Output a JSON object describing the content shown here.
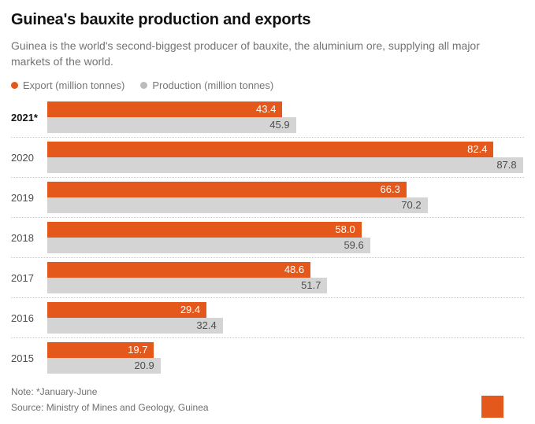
{
  "header": {
    "title": "Guinea's bauxite production and exports",
    "subtitle": "Guinea is the world's second-biggest producer of bauxite, the aluminium ore, supplying all major markets of the world."
  },
  "legend": [
    {
      "label": "Export (million tonnes)",
      "color": "#e5581b"
    },
    {
      "label": "Production (million tonnes)",
      "color": "#bcbcbc"
    }
  ],
  "chart_data": {
    "type": "bar",
    "orientation": "horizontal",
    "title": "Guinea's bauxite production and exports",
    "categories": [
      "2021*",
      "2020",
      "2019",
      "2018",
      "2017",
      "2016",
      "2015"
    ],
    "series": [
      {
        "name": "Export (million tonnes)",
        "color": "#e5581b",
        "values": [
          43.4,
          82.4,
          66.3,
          58.0,
          48.6,
          29.4,
          19.7
        ]
      },
      {
        "name": "Production (million tonnes)",
        "color": "#d4d4d4",
        "values": [
          45.9,
          87.8,
          70.2,
          59.6,
          51.7,
          32.4,
          20.9
        ]
      }
    ],
    "xlim": [
      0,
      88
    ],
    "value_labels": "inside-end",
    "grid": "off",
    "legend_position": "top",
    "separator_style": "dotted"
  },
  "footer": {
    "note": "Note: *January-June",
    "source": "Source: Ministry of Mines and Geology, Guinea"
  },
  "colors": {
    "accent_orange": "#e5581b",
    "bar_gray": "#d4d4d4",
    "title_text": "#111111",
    "subtitle_text": "#747474",
    "footer_text": "#6f6f6f"
  }
}
